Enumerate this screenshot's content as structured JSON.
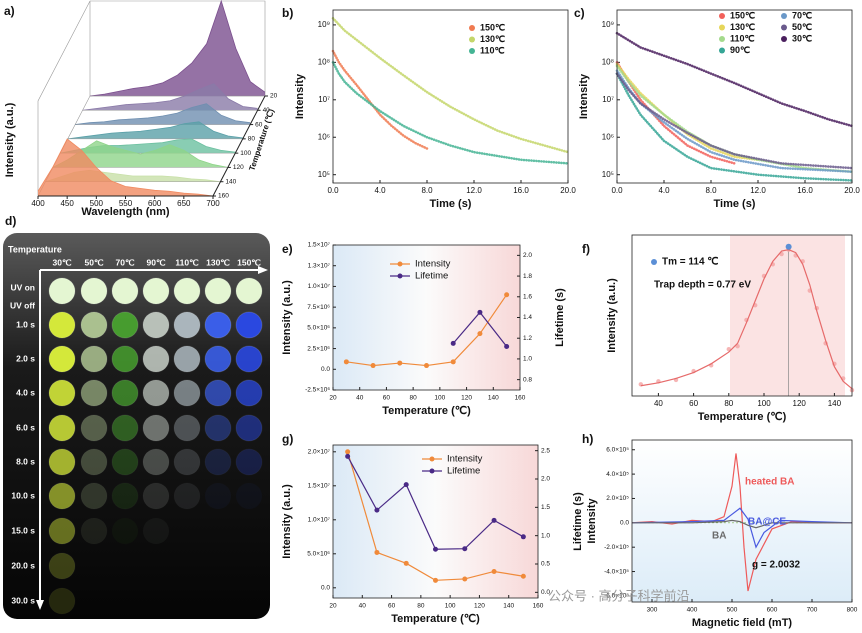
{
  "chart_data": [
    {
      "label": "a)",
      "type": "waterfall",
      "xlabel": "Wavelength (nm)",
      "ylabel": "Intensity (a.u.)",
      "zlabel": "Temperature (℃)",
      "x": [
        400,
        425,
        450,
        475,
        500,
        525,
        550,
        575,
        600,
        625,
        650,
        675,
        700
      ],
      "xlim": [
        400,
        700
      ],
      "xticks": [
        400,
        450,
        500,
        550,
        600,
        650,
        700
      ],
      "ylim": [
        0,
        1
      ],
      "zlim": [
        20,
        160
      ],
      "zticks": [
        20,
        40,
        60,
        80,
        100,
        120,
        140,
        160
      ],
      "series": [
        {
          "z": 20,
          "color": "#7b4f8e",
          "values": [
            0,
            0.02,
            0.05,
            0.08,
            0.1,
            0.14,
            0.22,
            0.35,
            0.55,
            1.0,
            0.5,
            0.15,
            0.04
          ]
        },
        {
          "z": 40,
          "color": "#8a7aa8",
          "values": [
            0,
            0.02,
            0.04,
            0.06,
            0.07,
            0.08,
            0.1,
            0.15,
            0.22,
            0.28,
            0.12,
            0.04,
            0.02
          ]
        },
        {
          "z": 60,
          "color": "#6f8fb0",
          "values": [
            0,
            0.02,
            0.03,
            0.05,
            0.06,
            0.07,
            0.09,
            0.12,
            0.18,
            0.22,
            0.1,
            0.04,
            0.02
          ]
        },
        {
          "z": 80,
          "color": "#5aa0a8",
          "values": [
            0,
            0.02,
            0.04,
            0.06,
            0.07,
            0.08,
            0.1,
            0.12,
            0.16,
            0.18,
            0.08,
            0.03,
            0.01
          ]
        },
        {
          "z": 100,
          "color": "#6cc0a0",
          "values": [
            0,
            0.03,
            0.06,
            0.08,
            0.08,
            0.09,
            0.1,
            0.11,
            0.14,
            0.15,
            0.07,
            0.03,
            0.01
          ]
        },
        {
          "z": 120,
          "color": "#8fd48a",
          "values": [
            0,
            0.08,
            0.18,
            0.28,
            0.22,
            0.18,
            0.14,
            0.18,
            0.24,
            0.18,
            0.08,
            0.03,
            0
          ]
        },
        {
          "z": 140,
          "color": "#c8e0a8",
          "values": [
            0,
            0.05,
            0.1,
            0.12,
            0.1,
            0.08,
            0.06,
            0.06,
            0.06,
            0.05,
            0.03,
            0.02,
            0
          ]
        },
        {
          "z": 160,
          "color": "#f08a60",
          "values": [
            0.05,
            0.3,
            0.6,
            0.48,
            0.3,
            0.16,
            0.1,
            0.08,
            0.06,
            0.05,
            0.03,
            0.02,
            0
          ]
        }
      ]
    },
    {
      "label": "b)",
      "type": "line",
      "xlabel": "Time (s)",
      "ylabel": "Intensity",
      "log_y": true,
      "legend": "upper right",
      "xlim": [
        0,
        20
      ],
      "xticks": [
        {
          "value": 0,
          "label": "0.0"
        },
        {
          "value": 4,
          "label": "4.0"
        },
        {
          "value": 8,
          "label": "8.0"
        },
        {
          "value": 12,
          "label": "12.0"
        },
        {
          "value": 16,
          "label": "16.0"
        },
        {
          "value": 20,
          "label": "20.0"
        }
      ],
      "ylim": [
        60000,
        2500000000
      ],
      "yticks": [
        {
          "value": 100000,
          "label": "10⁵"
        },
        {
          "value": 1000000,
          "label": "10⁶"
        },
        {
          "value": 10000000,
          "label": "10⁷"
        },
        {
          "value": 100000000,
          "label": "10⁸"
        },
        {
          "value": 1000000000,
          "label": "10⁹"
        }
      ],
      "series": [
        {
          "name": "150℃",
          "color": "#f07a50",
          "x": [
            0,
            0.5,
            1,
            2,
            3,
            4,
            5,
            6,
            7,
            8
          ],
          "values": [
            200000000,
            100000000,
            60000000,
            25000000,
            10000000,
            4000000,
            2000000,
            1100000,
            700000,
            500000
          ]
        },
        {
          "name": "130℃",
          "color": "#c4d66a",
          "x": [
            0,
            1,
            2,
            4,
            6,
            8,
            10,
            12,
            14,
            16,
            18,
            20
          ],
          "values": [
            1500000000,
            700000000,
            400000000,
            130000000,
            45000000,
            16000000,
            6500000,
            3000000,
            1500000,
            900000,
            600000,
            400000
          ]
        },
        {
          "name": "110℃",
          "color": "#45b494",
          "x": [
            0,
            0.5,
            1,
            2,
            4,
            6,
            8,
            10,
            12,
            16,
            20
          ],
          "values": [
            100000000,
            50000000,
            30000000,
            15000000,
            5000000,
            2000000,
            1000000,
            600000,
            400000,
            250000,
            200000
          ]
        }
      ]
    },
    {
      "label": "c)",
      "type": "line",
      "xlabel": "Time (s)",
      "ylabel": "Intensity",
      "log_y": true,
      "legend": "upper right",
      "xlim": [
        0,
        20
      ],
      "xticks": [
        {
          "value": 0,
          "label": "0.0"
        },
        {
          "value": 4,
          "label": "4.0"
        },
        {
          "value": 8,
          "label": "8.0"
        },
        {
          "value": 12,
          "label": "12.0"
        },
        {
          "value": 16,
          "label": "16.0"
        },
        {
          "value": 20,
          "label": "20.0"
        }
      ],
      "ylim": [
        60000,
        2500000000
      ],
      "yticks": [
        {
          "value": 100000,
          "label": "10⁵"
        },
        {
          "value": 1000000,
          "label": "10⁶"
        },
        {
          "value": 10000000,
          "label": "10⁷"
        },
        {
          "value": 100000000,
          "label": "10⁸"
        },
        {
          "value": 1000000000,
          "label": "10⁹"
        }
      ],
      "series": [
        {
          "name": "150℃",
          "color": "#f2605a",
          "x": [
            0,
            1,
            2,
            4,
            6,
            8,
            10
          ],
          "values": [
            100000000,
            30000000,
            10000000,
            2000000,
            600000,
            300000,
            200000
          ]
        },
        {
          "name": "130℃",
          "color": "#e6d65a",
          "x": [
            0,
            1,
            2,
            4,
            6,
            8,
            10,
            12
          ],
          "values": [
            90000000,
            35000000,
            15000000,
            4000000,
            1200000,
            500000,
            300000,
            250000
          ]
        },
        {
          "name": "110℃",
          "color": "#a4da8c",
          "x": [
            0,
            1,
            2,
            4,
            6,
            8,
            10,
            12,
            16,
            20
          ],
          "values": [
            80000000,
            30000000,
            13000000,
            4000000,
            1400000,
            600000,
            350000,
            250000,
            150000,
            120000
          ]
        },
        {
          "name": "90℃",
          "color": "#36a696",
          "x": [
            0,
            1,
            2,
            4,
            6,
            8,
            12,
            16,
            20
          ],
          "values": [
            50000000,
            13000000,
            4000000,
            800000,
            300000,
            150000,
            100000,
            80000,
            70000
          ]
        },
        {
          "name": "70℃",
          "color": "#6a98c8",
          "x": [
            0,
            1,
            2,
            4,
            6,
            8,
            10,
            14,
            20
          ],
          "values": [
            60000000,
            20000000,
            8000000,
            2500000,
            900000,
            400000,
            250000,
            150000,
            120000
          ]
        },
        {
          "name": "50℃",
          "color": "#6a5a8c",
          "x": [
            0,
            1,
            2,
            4,
            6,
            8,
            10,
            14,
            20
          ],
          "values": [
            50000000,
            18000000,
            8000000,
            3000000,
            1300000,
            600000,
            350000,
            200000,
            150000
          ]
        },
        {
          "name": "30℃",
          "color": "#4a1f5e",
          "x": [
            0,
            2,
            4,
            6,
            8,
            10,
            12,
            14,
            16,
            18,
            20
          ],
          "values": [
            600000000,
            250000000,
            150000000,
            90000000,
            50000000,
            28000000,
            15000000,
            8000000,
            5000000,
            3000000,
            2000000
          ]
        }
      ]
    },
    {
      "label": "e)",
      "type": "line",
      "xlabel": "Temperature (℃)",
      "ylabel": "Intensity (a.u.)",
      "y2label": "Lifetime (s)",
      "legend": "upper center",
      "x": [
        30,
        50,
        70,
        90,
        110,
        130,
        150
      ],
      "xlim": [
        20,
        160
      ],
      "xticks": [
        20,
        40,
        60,
        80,
        100,
        120,
        140,
        160
      ],
      "ylim": [
        -2500000,
        15000000
      ],
      "yticks": [
        {
          "value": -2500000,
          "label": "-2.5×10⁶"
        },
        {
          "value": 0,
          "label": "0.0"
        },
        {
          "value": 2500000,
          "label": "2.5×10⁶"
        },
        {
          "value": 5000000,
          "label": "5.0×10⁶"
        },
        {
          "value": 7500000,
          "label": "7.5×10⁶"
        },
        {
          "value": 10000000,
          "label": "1.0×10⁷"
        },
        {
          "value": 12500000,
          "label": "1.3×10⁷"
        },
        {
          "value": 15000000,
          "label": "1.5×10⁷"
        }
      ],
      "y2lim": [
        0.7,
        2.1
      ],
      "y2ticks": [
        {
          "value": 0.8,
          "label": "0.8"
        },
        {
          "value": 1,
          "label": "1.0"
        },
        {
          "value": 1.2,
          "label": "1.2"
        },
        {
          "value": 1.4,
          "label": "1.4"
        },
        {
          "value": 1.6,
          "label": "1.6"
        },
        {
          "value": 1.8,
          "label": "1.8"
        },
        {
          "value": 2,
          "label": "2.0"
        }
      ],
      "series": [
        {
          "name": "Intensity",
          "color": "#f08a3a",
          "values": [
            900000,
            450000,
            750000,
            450000,
            900000,
            4300000,
            9000000
          ]
        },
        {
          "name": "Lifetime",
          "color": "#4a2a86",
          "axis": "y2",
          "values": [
            null,
            null,
            null,
            null,
            1.15,
            1.45,
            1.12
          ]
        }
      ]
    },
    {
      "label": "f)",
      "type": "line",
      "xlabel": "Temperature (℃)",
      "ylabel": "Intensity (a.u.)",
      "x": [
        30,
        40,
        50,
        60,
        70,
        80,
        85,
        90,
        95,
        100,
        105,
        110,
        114,
        118,
        122,
        126,
        130,
        135,
        140,
        145,
        150
      ],
      "xlim": [
        25,
        150
      ],
      "xticks": [
        40,
        60,
        80,
        100,
        120,
        140
      ],
      "ylim": [
        0,
        1.1
      ],
      "peak": {
        "x": 114,
        "y": 1.02,
        "color": "#5b8fd6",
        "label": "Tm = 114 ℃"
      },
      "annotations": [
        "Trap depth = 0.77 eV"
      ],
      "series": [
        {
          "color": "#f4a2a2",
          "style": "points",
          "values": [
            0.08,
            0.1,
            0.11,
            0.17,
            0.21,
            0.32,
            0.34,
            0.52,
            0.62,
            0.82,
            0.9,
            0.97,
            1.0,
            0.96,
            0.92,
            0.72,
            0.6,
            0.36,
            0.22,
            0.12,
            0.04
          ]
        },
        {
          "color": "#e66a6a",
          "values": [
            0.07,
            0.09,
            0.12,
            0.16,
            0.22,
            0.3,
            0.36,
            0.5,
            0.65,
            0.8,
            0.92,
            0.99,
            1.0,
            0.98,
            0.9,
            0.76,
            0.58,
            0.38,
            0.2,
            0.1,
            0.05
          ]
        }
      ]
    },
    {
      "label": "g)",
      "type": "line",
      "xlabel": "Temperature (℃)",
      "ylabel": "Intensity (a.u.)",
      "y2label": "Lifetime (s)",
      "legend": "upper center",
      "x": [
        30,
        50,
        70,
        90,
        110,
        130,
        150
      ],
      "xlim": [
        20,
        160
      ],
      "xticks": [
        20,
        40,
        60,
        80,
        100,
        120,
        140,
        160
      ],
      "ylim": [
        -1500000,
        21000000
      ],
      "yticks": [
        {
          "value": 0,
          "label": "0.0"
        },
        {
          "value": 5000000,
          "label": "5.0×10⁶"
        },
        {
          "value": 10000000,
          "label": "1.0×10⁷"
        },
        {
          "value": 15000000,
          "label": "1.5×10⁷"
        },
        {
          "value": 20000000,
          "label": "2.0×10⁷"
        }
      ],
      "y2lim": [
        -0.1,
        2.6
      ],
      "y2ticks": [
        {
          "value": 0,
          "label": "0.0"
        },
        {
          "value": 0.5,
          "label": "0.5"
        },
        {
          "value": 1,
          "label": "1.0"
        },
        {
          "value": 1.5,
          "label": "1.5"
        },
        {
          "value": 2,
          "label": "2.0"
        },
        {
          "value": 2.5,
          "label": "2.5"
        }
      ],
      "series": [
        {
          "name": "Intensity",
          "color": "#f08a3a",
          "values": [
            20000000,
            5200000,
            3600000,
            1100000,
            1300000,
            2400000,
            1700000
          ]
        },
        {
          "name": "Lifetime",
          "color": "#4a2a86",
          "axis": "y2",
          "values": [
            2.4,
            1.45,
            1.9,
            0.76,
            0.77,
            1.27,
            0.98
          ]
        }
      ]
    },
    {
      "label": "h)",
      "type": "line",
      "xlabel": "Magnetic field (mT)",
      "ylabel": "Intensity",
      "legend": "inline",
      "xlim": [
        250,
        800
      ],
      "xticks": [
        300,
        400,
        500,
        600,
        700,
        800
      ],
      "ylim": [
        -650000,
        680000
      ],
      "yticks": [
        {
          "value": -600000,
          "label": "-6.0×10⁵"
        },
        {
          "value": -400000,
          "label": "-4.0×10⁵"
        },
        {
          "value": -200000,
          "label": "-2.0×10⁵"
        },
        {
          "value": 0,
          "label": "0.0"
        },
        {
          "value": 200000,
          "label": "2.0×10⁵"
        },
        {
          "value": 400000,
          "label": "4.0×10⁵"
        },
        {
          "value": 600000,
          "label": "6.0×10⁵"
        }
      ],
      "annotations": [
        "g = 2.0032"
      ],
      "series": [
        {
          "name": "heated BA",
          "color": "#ee5a5a",
          "x": [
            250,
            300,
            350,
            400,
            450,
            480,
            500,
            510,
            520,
            530,
            540,
            560,
            600,
            650,
            700,
            800
          ],
          "values": [
            0,
            10000,
            -10000,
            20000,
            10000,
            50000,
            300000,
            570000,
            300000,
            -200000,
            -560000,
            -300000,
            -50000,
            10000,
            0,
            0
          ]
        },
        {
          "name": "BA@CE",
          "color": "#4a5ae0",
          "x": [
            250,
            400,
            480,
            500,
            520,
            540,
            560,
            580,
            620,
            700,
            800
          ],
          "values": [
            0,
            10000,
            20000,
            70000,
            120000,
            30000,
            -200000,
            -80000,
            20000,
            10000,
            0
          ]
        },
        {
          "name": "BA",
          "color": "#6a6a6a",
          "x": [
            250,
            400,
            480,
            500,
            520,
            540,
            560,
            600,
            800
          ],
          "values": [
            0,
            0,
            10000,
            20000,
            10000,
            -20000,
            -40000,
            0,
            0
          ]
        }
      ]
    }
  ],
  "photo_grid": {
    "label": "d)",
    "title": "Temperature",
    "columns": [
      "30℃",
      "50℃",
      "70℃",
      "90℃",
      "110℃",
      "130℃",
      "150℃"
    ],
    "rows": [
      "UV on",
      "UV off",
      "1.0 s",
      "2.0 s",
      "4.0 s",
      "6.0 s",
      "8.0 s",
      "10.0 s",
      "15.0 s",
      "20.0 s",
      "30.0 s"
    ]
  },
  "watermark": "公众号 · 高分子科学前沿"
}
